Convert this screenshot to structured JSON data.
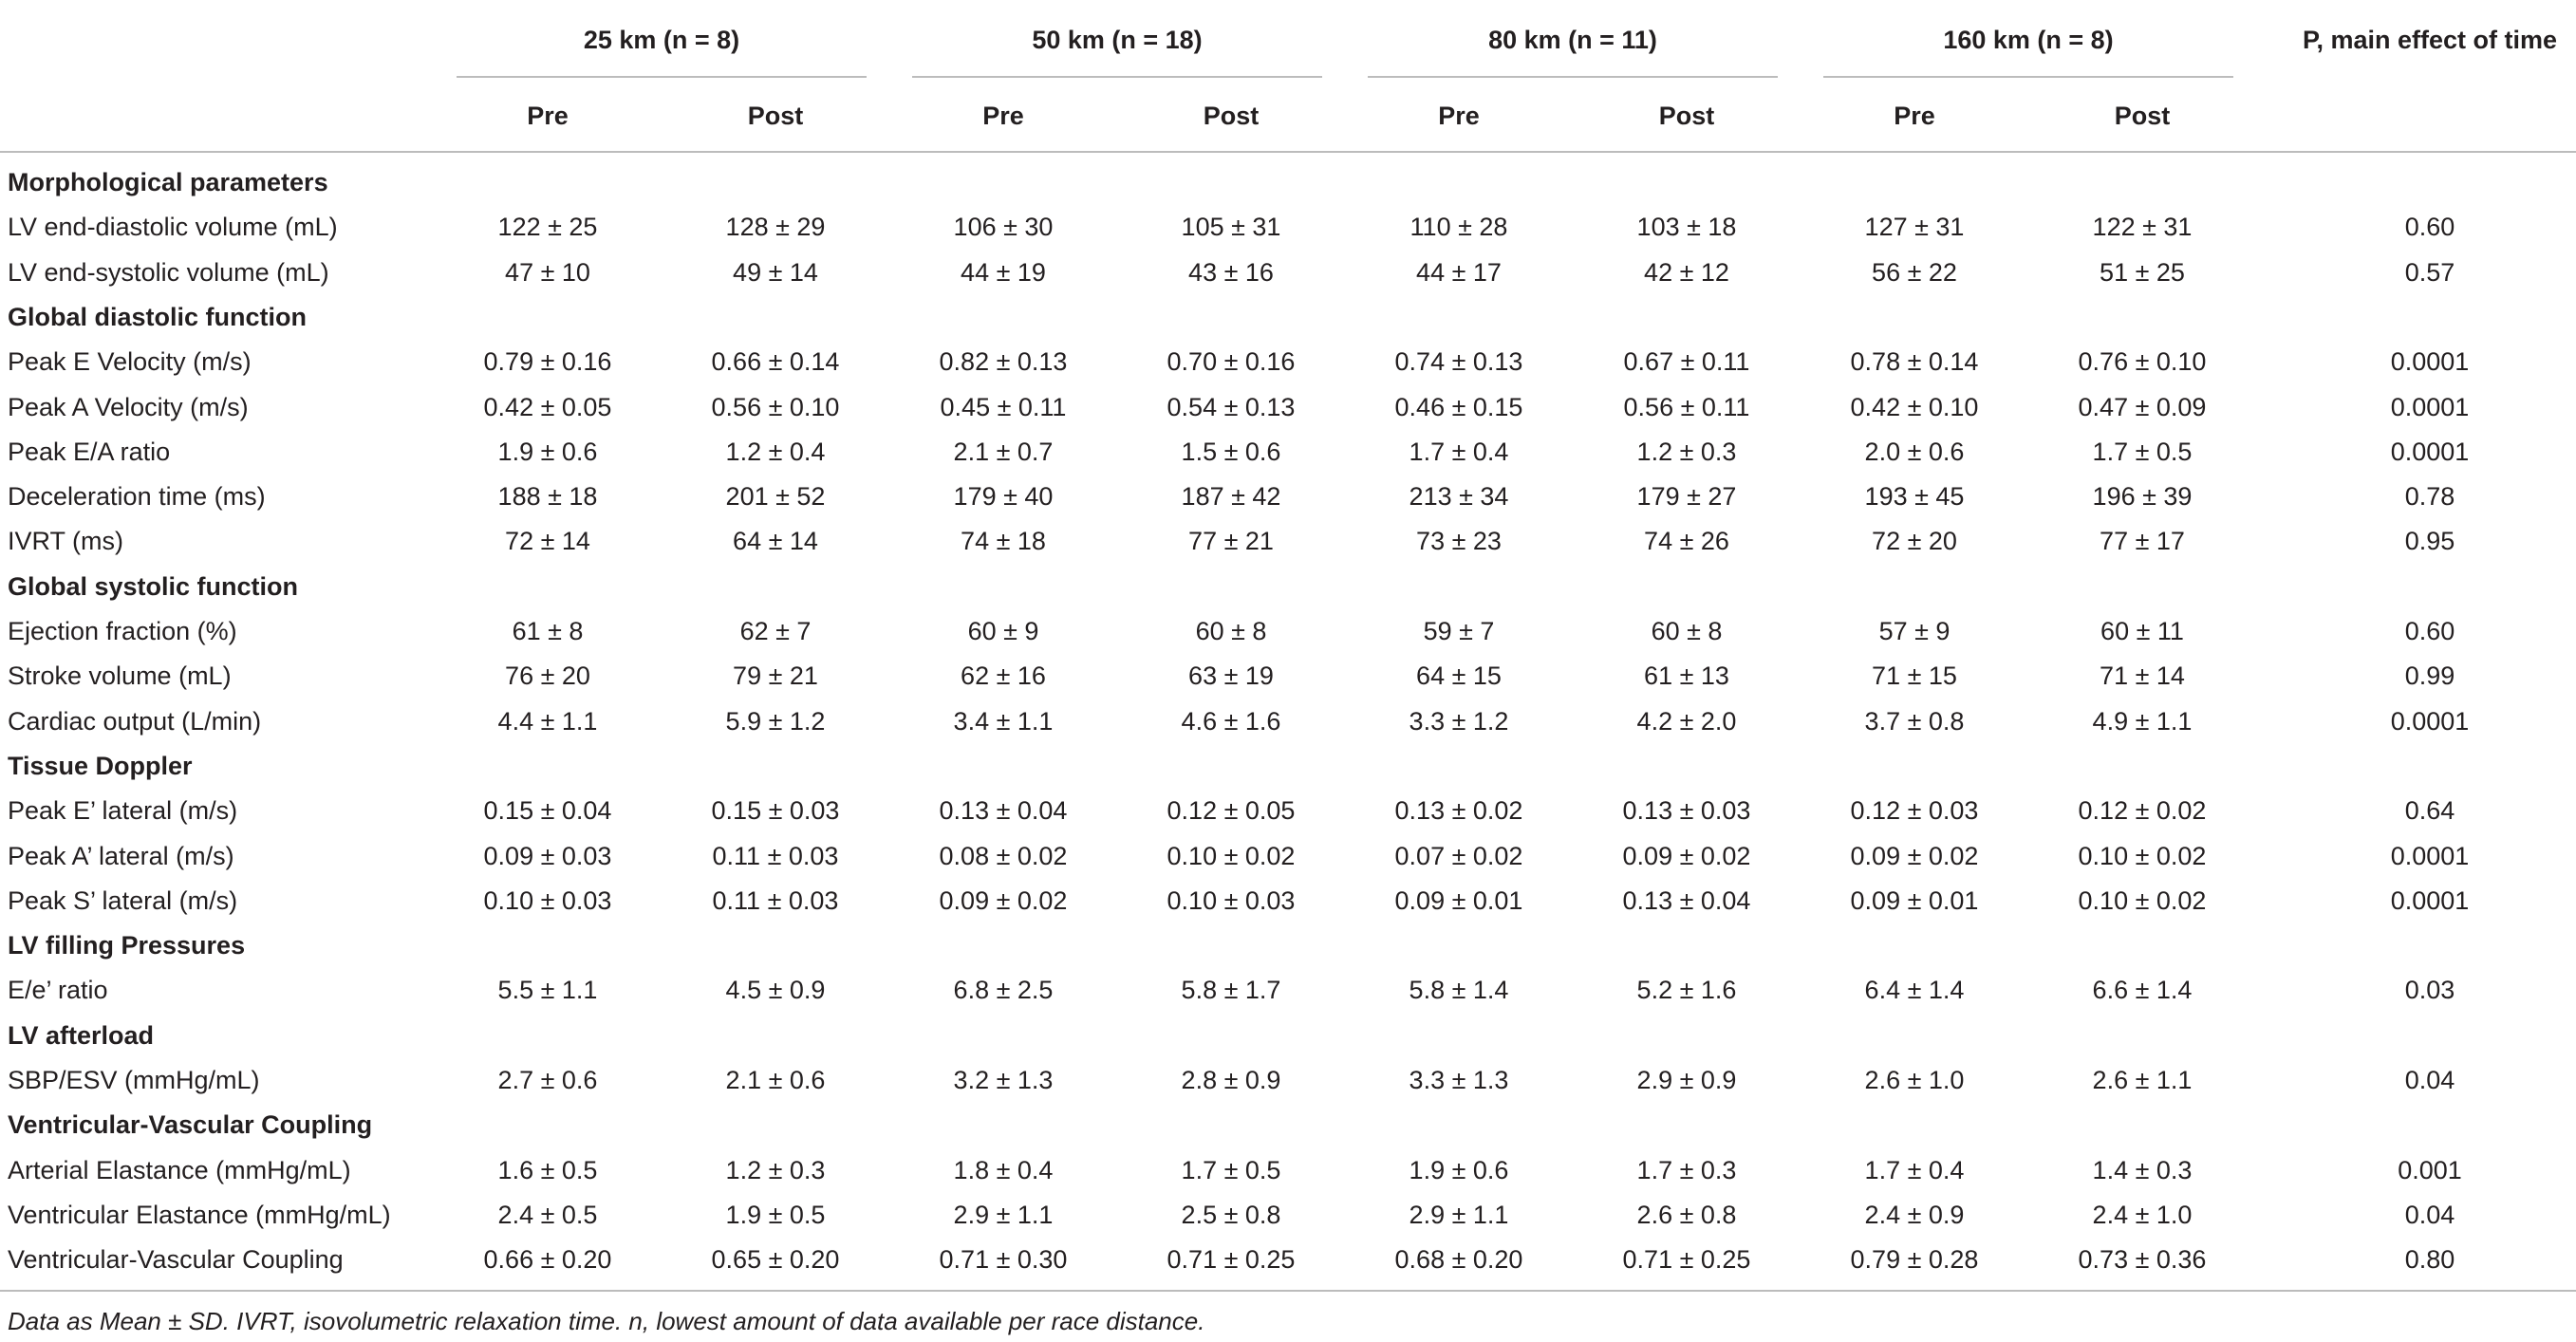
{
  "table": {
    "label_header": "",
    "groups": [
      {
        "label": "25 km (n = 8)",
        "subcolumns": [
          "Pre",
          "Post"
        ]
      },
      {
        "label": "50 km (n = 18)",
        "subcolumns": [
          "Pre",
          "Post"
        ]
      },
      {
        "label": "80 km (n = 11)",
        "subcolumns": [
          "Pre",
          "Post"
        ]
      },
      {
        "label": "160 km (n = 8)",
        "subcolumns": [
          "Pre",
          "Post"
        ]
      }
    ],
    "p_header": "P, main effect of time",
    "rows": [
      {
        "section": "Morphological parameters"
      },
      {
        "label": "LV end-diastolic volume (mL)",
        "cells": [
          "122 ± 25",
          "128 ± 29",
          "106 ± 30",
          "105 ± 31",
          "110 ± 28",
          "103 ± 18",
          "127 ± 31",
          "122 ± 31"
        ],
        "p": "0.60"
      },
      {
        "label": "LV end-systolic volume (mL)",
        "cells": [
          "47 ± 10",
          "49 ± 14",
          "44 ± 19",
          "43 ± 16",
          "44 ± 17",
          "42 ± 12",
          "56 ± 22",
          "51 ± 25"
        ],
        "p": "0.57"
      },
      {
        "section": "Global diastolic function"
      },
      {
        "label": "Peak E Velocity (m/s)",
        "cells": [
          "0.79 ± 0.16",
          "0.66 ± 0.14",
          "0.82 ± 0.13",
          "0.70 ± 0.16",
          "0.74 ± 0.13",
          "0.67 ± 0.11",
          "0.78 ± 0.14",
          "0.76 ± 0.10"
        ],
        "p": "0.0001"
      },
      {
        "label": "Peak A Velocity (m/s)",
        "cells": [
          "0.42 ± 0.05",
          "0.56 ± 0.10",
          "0.45 ± 0.11",
          "0.54 ± 0.13",
          "0.46 ± 0.15",
          "0.56 ± 0.11",
          "0.42 ± 0.10",
          "0.47 ± 0.09"
        ],
        "p": "0.0001"
      },
      {
        "label": "Peak E/A ratio",
        "cells": [
          "1.9 ± 0.6",
          "1.2 ± 0.4",
          "2.1 ± 0.7",
          "1.5 ± 0.6",
          "1.7 ± 0.4",
          "1.2 ± 0.3",
          "2.0 ± 0.6",
          "1.7 ± 0.5"
        ],
        "p": "0.0001"
      },
      {
        "label": "Deceleration time (ms)",
        "cells": [
          "188 ± 18",
          "201 ± 52",
          "179 ± 40",
          "187 ± 42",
          "213 ± 34",
          "179 ± 27",
          "193 ± 45",
          "196 ± 39"
        ],
        "p": "0.78"
      },
      {
        "label": "IVRT (ms)",
        "cells": [
          "72 ± 14",
          "64 ± 14",
          "74 ± 18",
          "77 ± 21",
          "73 ± 23",
          "74 ± 26",
          "72 ± 20",
          "77 ± 17"
        ],
        "p": "0.95"
      },
      {
        "section": "Global systolic function"
      },
      {
        "label": "Ejection fraction (%)",
        "cells": [
          "61 ± 8",
          "62 ± 7",
          "60 ± 9",
          "60 ± 8",
          "59 ± 7",
          "60 ± 8",
          "57 ± 9",
          "60 ± 11"
        ],
        "p": "0.60"
      },
      {
        "label": "Stroke volume (mL)",
        "cells": [
          "76 ± 20",
          "79 ± 21",
          "62 ± 16",
          "63 ± 19",
          "64 ± 15",
          "61 ± 13",
          "71 ± 15",
          "71 ± 14"
        ],
        "p": "0.99"
      },
      {
        "label": "Cardiac output (L/min)",
        "cells": [
          "4.4 ± 1.1",
          "5.9 ± 1.2",
          "3.4 ± 1.1",
          "4.6 ± 1.6",
          "3.3 ± 1.2",
          "4.2 ± 2.0",
          "3.7 ± 0.8",
          "4.9 ± 1.1"
        ],
        "p": "0.0001"
      },
      {
        "section": "Tissue Doppler"
      },
      {
        "label": "Peak E’ lateral (m/s)",
        "cells": [
          "0.15 ± 0.04",
          "0.15 ± 0.03",
          "0.13 ± 0.04",
          "0.12 ± 0.05",
          "0.13 ± 0.02",
          "0.13 ± 0.03",
          "0.12 ± 0.03",
          "0.12 ± 0.02"
        ],
        "p": "0.64"
      },
      {
        "label": "Peak A’ lateral (m/s)",
        "cells": [
          "0.09 ± 0.03",
          "0.11 ± 0.03",
          "0.08 ± 0.02",
          "0.10 ± 0.02",
          "0.07 ± 0.02",
          "0.09 ± 0.02",
          "0.09 ± 0.02",
          "0.10 ± 0.02"
        ],
        "p": "0.0001"
      },
      {
        "label": "Peak S’ lateral (m/s)",
        "cells": [
          "0.10 ± 0.03",
          "0.11 ± 0.03",
          "0.09 ± 0.02",
          "0.10 ± 0.03",
          "0.09 ± 0.01",
          "0.13 ± 0.04",
          "0.09 ± 0.01",
          "0.10 ± 0.02"
        ],
        "p": "0.0001"
      },
      {
        "section": "LV filling Pressures"
      },
      {
        "label": "E/e’ ratio",
        "cells": [
          "5.5 ± 1.1",
          "4.5 ± 0.9",
          "6.8 ± 2.5",
          "5.8 ± 1.7",
          "5.8 ± 1.4",
          "5.2 ± 1.6",
          "6.4 ± 1.4",
          "6.6 ± 1.4"
        ],
        "p": "0.03"
      },
      {
        "section": "LV afterload"
      },
      {
        "label": "SBP/ESV (mmHg/mL)",
        "cells": [
          "2.7 ± 0.6",
          "2.1 ± 0.6",
          "3.2 ± 1.3",
          "2.8 ± 0.9",
          "3.3 ± 1.3",
          "2.9 ± 0.9",
          "2.6 ± 1.0",
          "2.6 ± 1.1"
        ],
        "p": "0.04"
      },
      {
        "section": "Ventricular-Vascular Coupling"
      },
      {
        "label": "Arterial Elastance (mmHg/mL)",
        "cells": [
          "1.6 ± 0.5",
          "1.2 ± 0.3",
          "1.8 ± 0.4",
          "1.7 ± 0.5",
          "1.9 ± 0.6",
          "1.7 ± 0.3",
          "1.7 ± 0.4",
          "1.4 ± 0.3"
        ],
        "p": "0.001"
      },
      {
        "label": "Ventricular Elastance (mmHg/mL)",
        "cells": [
          "2.4 ± 0.5",
          "1.9 ± 0.5",
          "2.9 ± 1.1",
          "2.5 ± 0.8",
          "2.9 ± 1.1",
          "2.6 ± 0.8",
          "2.4 ± 0.9",
          "2.4 ± 1.0"
        ],
        "p": "0.04"
      },
      {
        "label": "Ventricular-Vascular Coupling",
        "cells": [
          "0.66 ± 0.20",
          "0.65 ± 0.20",
          "0.71 ± 0.30",
          "0.71 ± 0.25",
          "0.68 ± 0.20",
          "0.71 ± 0.25",
          "0.79 ± 0.28",
          "0.73 ± 0.36"
        ],
        "p": "0.80"
      }
    ],
    "footnote": "Data as Mean ± SD. IVRT, isovolumetric relaxation time. n, lowest amount of data available per race distance."
  }
}
